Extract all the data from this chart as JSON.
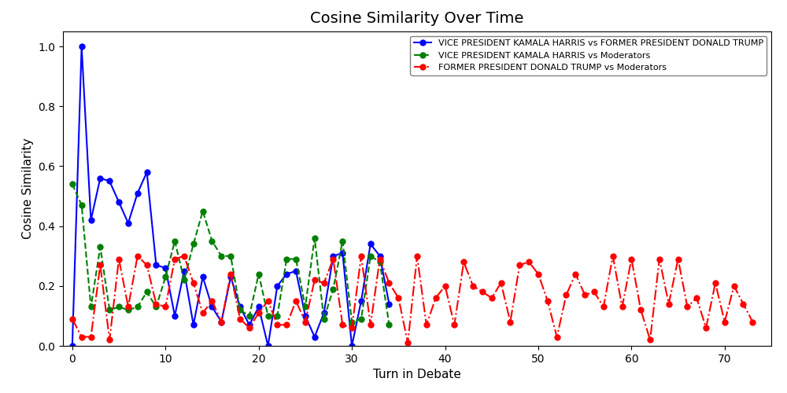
{
  "title": "Cosine Similarity Over Time",
  "xlabel": "Turn in Debate",
  "ylabel": "Cosine Similarity",
  "ylim": [
    0,
    1.05
  ],
  "xlim": [
    -1,
    75
  ],
  "series": [
    {
      "label": "VICE PRESIDENT KAMALA HARRIS vs FORMER PRESIDENT DONALD TRUMP",
      "color": "blue",
      "linestyle": "-",
      "marker": "o",
      "markersize": 5,
      "linewidth": 1.5,
      "x": [
        0,
        1,
        2,
        3,
        4,
        5,
        6,
        7,
        8,
        9,
        10,
        11,
        12,
        13,
        14,
        15,
        16,
        17,
        18,
        19,
        20,
        21,
        22,
        23,
        24,
        25,
        26,
        27,
        28,
        29,
        30,
        31,
        32,
        33,
        34
      ],
      "y": [
        0.0,
        1.0,
        0.42,
        0.56,
        0.55,
        0.48,
        0.41,
        0.51,
        0.58,
        0.27,
        0.26,
        0.1,
        0.25,
        0.07,
        0.23,
        0.13,
        0.08,
        0.23,
        0.13,
        0.07,
        0.13,
        0.0,
        0.2,
        0.24,
        0.25,
        0.1,
        0.03,
        0.11,
        0.3,
        0.31,
        0.0,
        0.15,
        0.34,
        0.3,
        0.14
      ]
    },
    {
      "label": "VICE PRESIDENT KAMALA HARRIS vs Moderators",
      "color": "green",
      "linestyle": "--",
      "marker": "o",
      "markersize": 5,
      "linewidth": 1.5,
      "x": [
        0,
        1,
        2,
        3,
        4,
        5,
        6,
        7,
        8,
        9,
        10,
        11,
        12,
        13,
        14,
        15,
        16,
        17,
        18,
        19,
        20,
        21,
        22,
        23,
        24,
        25,
        26,
        27,
        28,
        29,
        30,
        31,
        32,
        33,
        34
      ],
      "y": [
        0.54,
        0.47,
        0.13,
        0.33,
        0.12,
        0.13,
        0.12,
        0.13,
        0.18,
        0.13,
        0.23,
        0.35,
        0.22,
        0.34,
        0.45,
        0.35,
        0.3,
        0.3,
        0.12,
        0.1,
        0.24,
        0.1,
        0.1,
        0.29,
        0.29,
        0.13,
        0.36,
        0.09,
        0.19,
        0.35,
        0.08,
        0.09,
        0.3,
        0.28,
        0.07
      ]
    },
    {
      "label": "FORMER PRESIDENT DONALD TRUMP vs Moderators",
      "color": "red",
      "linestyle": "-.",
      "marker": "o",
      "markersize": 5,
      "linewidth": 1.5,
      "x": [
        0,
        1,
        2,
        3,
        4,
        5,
        6,
        7,
        8,
        9,
        10,
        11,
        12,
        13,
        14,
        15,
        16,
        17,
        18,
        19,
        20,
        21,
        22,
        23,
        24,
        25,
        26,
        27,
        28,
        29,
        30,
        31,
        32,
        33,
        34,
        35,
        36,
        37,
        38,
        39,
        40,
        41,
        42,
        43,
        44,
        45,
        46,
        47,
        48,
        49,
        50,
        51,
        52,
        53,
        54,
        55,
        56,
        57,
        58,
        59,
        60,
        61,
        62,
        63,
        64,
        65,
        66,
        67,
        68,
        69,
        70,
        71,
        72,
        73
      ],
      "y": [
        0.09,
        0.03,
        0.03,
        0.27,
        0.02,
        0.29,
        0.13,
        0.3,
        0.27,
        0.14,
        0.13,
        0.29,
        0.3,
        0.21,
        0.11,
        0.15,
        0.08,
        0.24,
        0.09,
        0.06,
        0.11,
        0.15,
        0.07,
        0.07,
        0.15,
        0.08,
        0.22,
        0.21,
        0.29,
        0.07,
        0.06,
        0.3,
        0.07,
        0.29,
        0.21,
        0.16,
        0.01,
        0.3,
        0.07,
        0.16,
        0.2,
        0.07,
        0.28,
        0.2,
        0.18,
        0.16,
        0.21,
        0.08,
        0.27,
        0.28,
        0.24,
        0.15,
        0.03,
        0.17,
        0.24,
        0.17,
        0.18,
        0.13,
        0.3,
        0.13,
        0.29,
        0.12,
        0.02,
        0.29,
        0.14,
        0.29,
        0.13,
        0.16,
        0.06,
        0.21,
        0.08,
        0.2,
        0.14,
        0.08
      ]
    }
  ],
  "title_fontsize": 14,
  "label_fontsize": 11,
  "tick_fontsize": 10,
  "legend_fontsize": 8,
  "xticks": [
    0,
    10,
    20,
    30,
    40,
    50,
    60,
    70
  ],
  "yticks": [
    0.0,
    0.2,
    0.4,
    0.6,
    0.8,
    1.0
  ],
  "background_color": "white",
  "figsize": [
    10,
    5
  ],
  "dpi": 100
}
